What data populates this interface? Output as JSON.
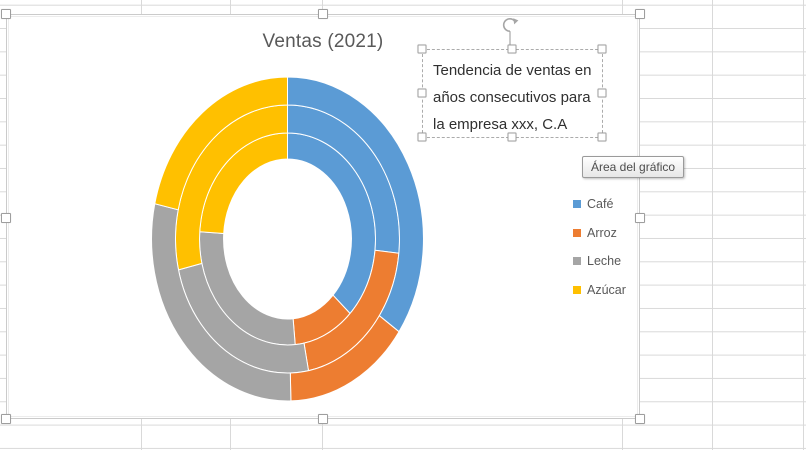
{
  "tooltip": {
    "text": "Área del gráfico"
  },
  "text_box": {
    "lines": [
      "Tendencia de ventas en",
      "años consecutivos para",
      "la empresa xxx, C.A"
    ]
  },
  "chart_data": {
    "type": "doughnut",
    "title": "Ventas (2021)",
    "categories": [
      "Café",
      "Arroz",
      "Leche",
      "Azúcar"
    ],
    "colors": [
      "#5B9BD5",
      "#ED7D31",
      "#A5A5A5",
      "#FFC000"
    ],
    "series_order": "inner_to_outer",
    "values_unit": "percent_of_ring",
    "series": [
      {
        "name": "inner",
        "values": [
          37.4,
          11.2,
          27.5,
          23.9
        ]
      },
      {
        "name": "middle",
        "values": [
          26.7,
          20.3,
          24.3,
          28.7
        ]
      },
      {
        "name": "outer",
        "values": [
          34.7,
          14.9,
          28.9,
          21.5
        ]
      }
    ],
    "start_angle_deg": 0,
    "legend_position": "right",
    "hole": true,
    "rings": 3
  }
}
